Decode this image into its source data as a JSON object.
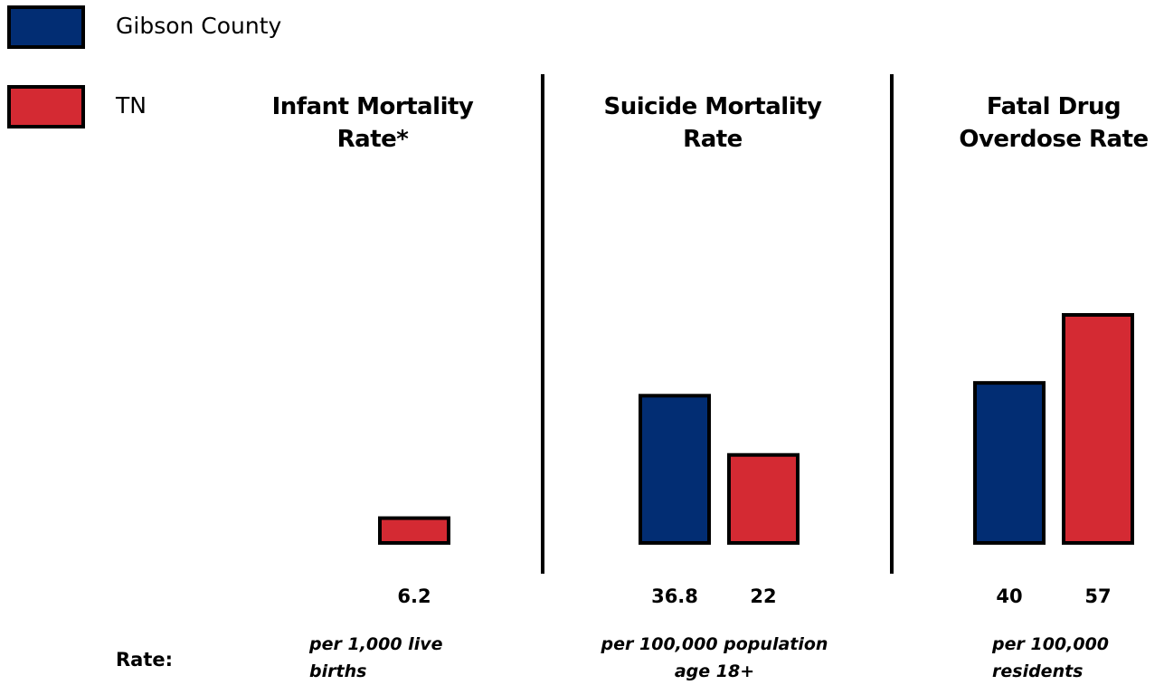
{
  "chart_data": {
    "type": "bar",
    "categories": [
      "Infant Mortality Rate*",
      "Suicide Mortality Rate",
      "Fatal Drug Overdose Rate"
    ],
    "series": [
      {
        "name": "Gibson County",
        "color": "#022d73",
        "values": [
          null,
          36.8,
          40
        ]
      },
      {
        "name": "TN",
        "color": "#d42a33",
        "values": [
          6.2,
          22,
          57
        ]
      }
    ],
    "category_notes": [
      "per 1,000 live births",
      "per 100,000 population age 18+",
      "per 100,000 residents"
    ],
    "note_label": "Rate:"
  }
}
